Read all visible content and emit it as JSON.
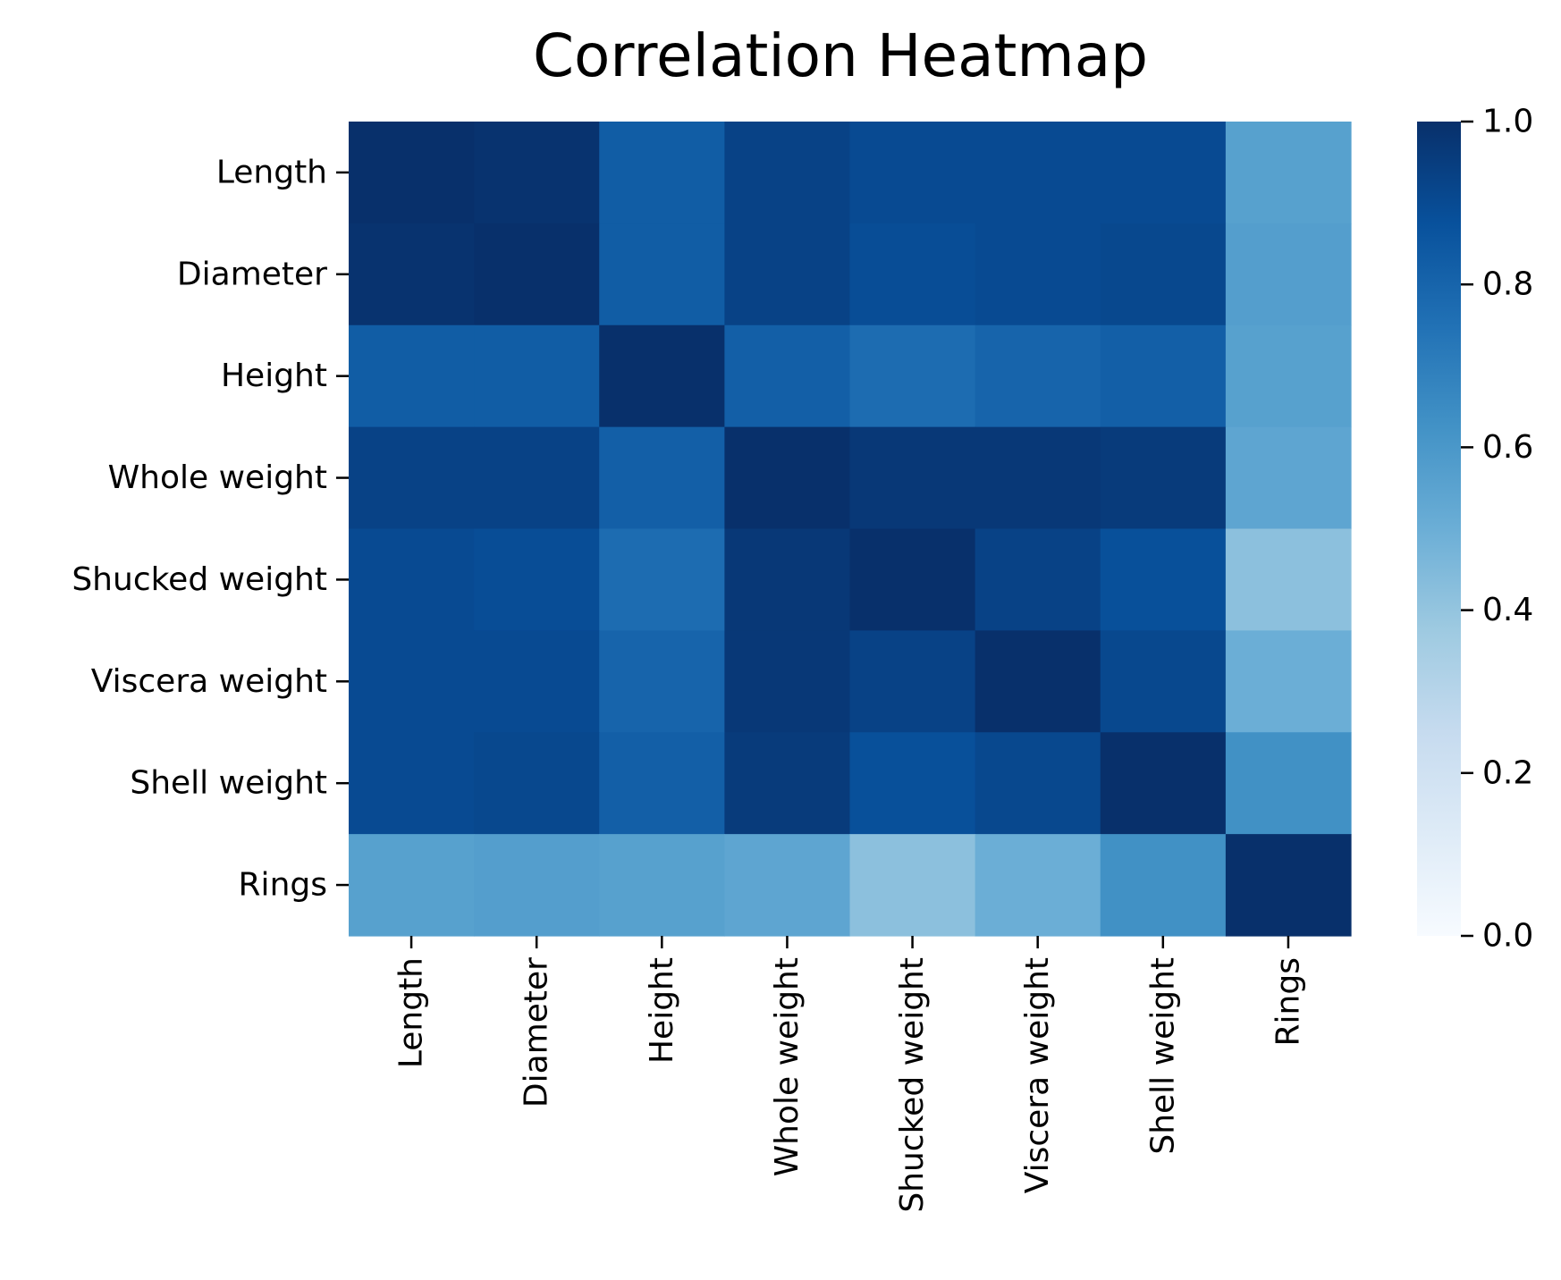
{
  "chart_data": {
    "type": "heatmap",
    "title": "Correlation Heatmap",
    "xlabel": "",
    "ylabel": "",
    "colormap": "Blues",
    "row_labels": [
      "Length",
      "Diameter",
      "Height",
      "Whole weight",
      "Shucked weight",
      "Viscera weight",
      "Shell weight",
      "Rings"
    ],
    "col_labels": [
      "Length",
      "Diameter",
      "Height",
      "Whole weight",
      "Shucked weight",
      "Viscera weight",
      "Shell weight",
      "Rings"
    ],
    "values": [
      [
        1.0,
        0.99,
        0.83,
        0.93,
        0.9,
        0.9,
        0.9,
        0.56
      ],
      [
        0.99,
        1.0,
        0.83,
        0.93,
        0.89,
        0.9,
        0.91,
        0.57
      ],
      [
        0.83,
        0.83,
        1.0,
        0.82,
        0.77,
        0.8,
        0.82,
        0.56
      ],
      [
        0.93,
        0.93,
        0.82,
        1.0,
        0.97,
        0.97,
        0.96,
        0.54
      ],
      [
        0.9,
        0.89,
        0.77,
        0.97,
        1.0,
        0.93,
        0.88,
        0.42
      ],
      [
        0.9,
        0.9,
        0.8,
        0.97,
        0.93,
        1.0,
        0.91,
        0.5
      ],
      [
        0.9,
        0.91,
        0.82,
        0.96,
        0.88,
        0.91,
        1.0,
        0.63
      ],
      [
        0.56,
        0.57,
        0.56,
        0.54,
        0.42,
        0.5,
        0.63,
        1.0
      ]
    ],
    "colorbar": {
      "range": [
        0.0,
        1.0
      ],
      "ticks": [
        0.0,
        0.2,
        0.4,
        0.6,
        0.8,
        1.0
      ],
      "tick_labels": [
        "0.0",
        "0.2",
        "0.4",
        "0.6",
        "0.8",
        "1.0"
      ]
    }
  }
}
